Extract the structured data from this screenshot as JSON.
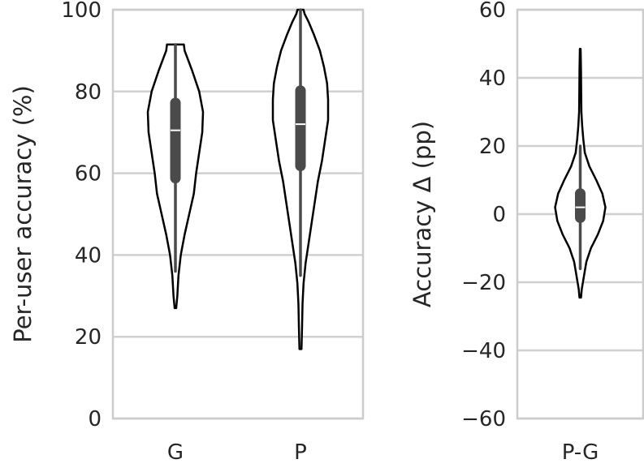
{
  "chart_data": [
    {
      "type": "violin",
      "title": "",
      "xlabel": "",
      "ylabel": "Per-user accuracy (%)",
      "ylim": [
        0,
        100
      ],
      "yticks": [
        0,
        20,
        40,
        60,
        80,
        100
      ],
      "grid": true,
      "categories": [
        "G",
        "P"
      ],
      "series": [
        {
          "category": "G",
          "min": 27,
          "q1": 58,
          "median": 70.5,
          "q3": 78,
          "max": 91.5,
          "whisker_low": 36,
          "whisker_high": 91.5,
          "density": [
            [
              27,
              1
            ],
            [
              30,
              2.5
            ],
            [
              35,
              4
            ],
            [
              40,
              7
            ],
            [
              45,
              12
            ],
            [
              50,
              18
            ],
            [
              55,
              24
            ],
            [
              60,
              27
            ],
            [
              65,
              31
            ],
            [
              70,
              35
            ],
            [
              75,
              36
            ],
            [
              80,
              31
            ],
            [
              85,
              22
            ],
            [
              88,
              16
            ],
            [
              90,
              12
            ],
            [
              91.5,
              11
            ]
          ]
        },
        {
          "category": "P",
          "min": 17,
          "q1": 61,
          "median": 72,
          "q3": 81,
          "max": 100,
          "whisker_low": 35,
          "whisker_high": 100,
          "density": [
            [
              17,
              1
            ],
            [
              22,
              1.5
            ],
            [
              28,
              2
            ],
            [
              33,
              3
            ],
            [
              38,
              5
            ],
            [
              43,
              8
            ],
            [
              48,
              11
            ],
            [
              53,
              14
            ],
            [
              58,
              17
            ],
            [
              63,
              21
            ],
            [
              68,
              24
            ],
            [
              73,
              27
            ],
            [
              78,
              27
            ],
            [
              82,
              26
            ],
            [
              86,
              23
            ],
            [
              90,
              19
            ],
            [
              94,
              13
            ],
            [
              97,
              8
            ],
            [
              99,
              4
            ],
            [
              100,
              3
            ]
          ]
        }
      ]
    },
    {
      "type": "violin",
      "title": "",
      "xlabel": "",
      "ylabel": "Accuracy Δ (pp)",
      "ylim": [
        -60,
        60
      ],
      "yticks": [
        -60,
        -40,
        -20,
        0,
        20,
        40,
        60
      ],
      "grid": true,
      "categories": [
        "P-G"
      ],
      "series": [
        {
          "category": "P-G",
          "min": -24.5,
          "q1": -2,
          "median": 2,
          "q3": 7,
          "max": 48.5,
          "whisker_low": -16,
          "whisker_high": 20,
          "density": [
            [
              -24.5,
              1
            ],
            [
              -22,
              2
            ],
            [
              -18,
              5
            ],
            [
              -14,
              8
            ],
            [
              -10,
              14
            ],
            [
              -6,
              23
            ],
            [
              -2,
              30
            ],
            [
              2,
              33
            ],
            [
              6,
              29
            ],
            [
              10,
              21
            ],
            [
              14,
              12
            ],
            [
              18,
              6
            ],
            [
              22,
              4
            ],
            [
              26,
              2.5
            ],
            [
              30,
              1.5
            ],
            [
              36,
              1.2
            ],
            [
              42,
              1
            ],
            [
              48.5,
              0.5
            ]
          ]
        }
      ]
    }
  ]
}
